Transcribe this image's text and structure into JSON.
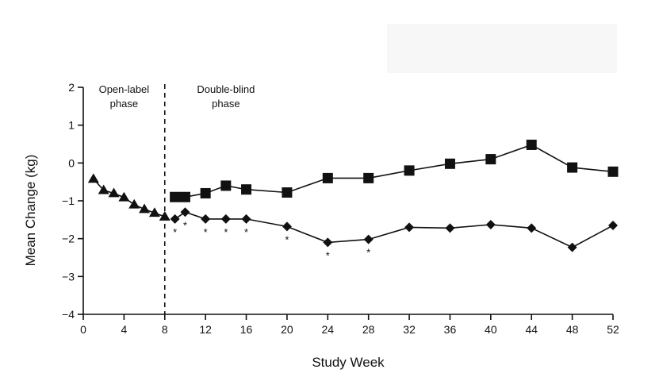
{
  "chart_data": {
    "type": "line",
    "xlabel": "Study Week",
    "ylabel": "Mean Change (kg)",
    "xlim": [
      0,
      52
    ],
    "ylim": [
      -4,
      2
    ],
    "xticks": [
      0,
      4,
      8,
      12,
      16,
      20,
      24,
      28,
      32,
      36,
      40,
      44,
      48,
      52
    ],
    "yticks": [
      -4,
      -3,
      -2,
      -1,
      0,
      1,
      2
    ],
    "xtick_labels": [
      "0",
      "4",
      "8",
      "12",
      "16",
      "20",
      "24",
      "28",
      "32",
      "36",
      "40",
      "44",
      "48",
      "52"
    ],
    "ytick_labels": [
      "−4",
      "−3",
      "−2",
      "−1",
      "0",
      "1",
      "2"
    ],
    "grid": false,
    "phase_divider_x": 8,
    "annotations": [
      {
        "text": "Open-label",
        "x": 4
      },
      {
        "text": "phase",
        "x": 4
      },
      {
        "text": "Double-blind",
        "x": 14
      },
      {
        "text": "phase",
        "x": 14
      }
    ],
    "significance_marker": "*",
    "series": [
      {
        "marker": "triangle",
        "x": [
          1,
          2,
          3,
          4,
          5,
          6,
          7,
          8
        ],
        "values": [
          -0.42,
          -0.72,
          -0.8,
          -0.91,
          -1.1,
          -1.22,
          -1.32,
          -1.42
        ]
      },
      {
        "marker": "square",
        "x": [
          9,
          10,
          12,
          14,
          16,
          20,
          24,
          28,
          32,
          36,
          40,
          44,
          48,
          52
        ],
        "values": [
          -0.9,
          -0.9,
          -0.8,
          -0.6,
          -0.7,
          -0.78,
          -0.4,
          -0.4,
          -0.2,
          -0.02,
          0.1,
          0.48,
          -0.12,
          -0.23
        ]
      },
      {
        "marker": "diamond",
        "x": [
          9,
          10,
          12,
          14,
          16,
          20,
          24,
          28,
          32,
          36,
          40,
          44,
          48,
          52
        ],
        "values": [
          -1.48,
          -1.3,
          -1.48,
          -1.48,
          -1.48,
          -1.68,
          -2.1,
          -2.02,
          -1.7,
          -1.72,
          -1.63,
          -1.72,
          -2.23,
          -1.65
        ],
        "significant": [
          true,
          true,
          true,
          true,
          true,
          true,
          true,
          true,
          false,
          false,
          false,
          false,
          false,
          false
        ]
      }
    ]
  }
}
